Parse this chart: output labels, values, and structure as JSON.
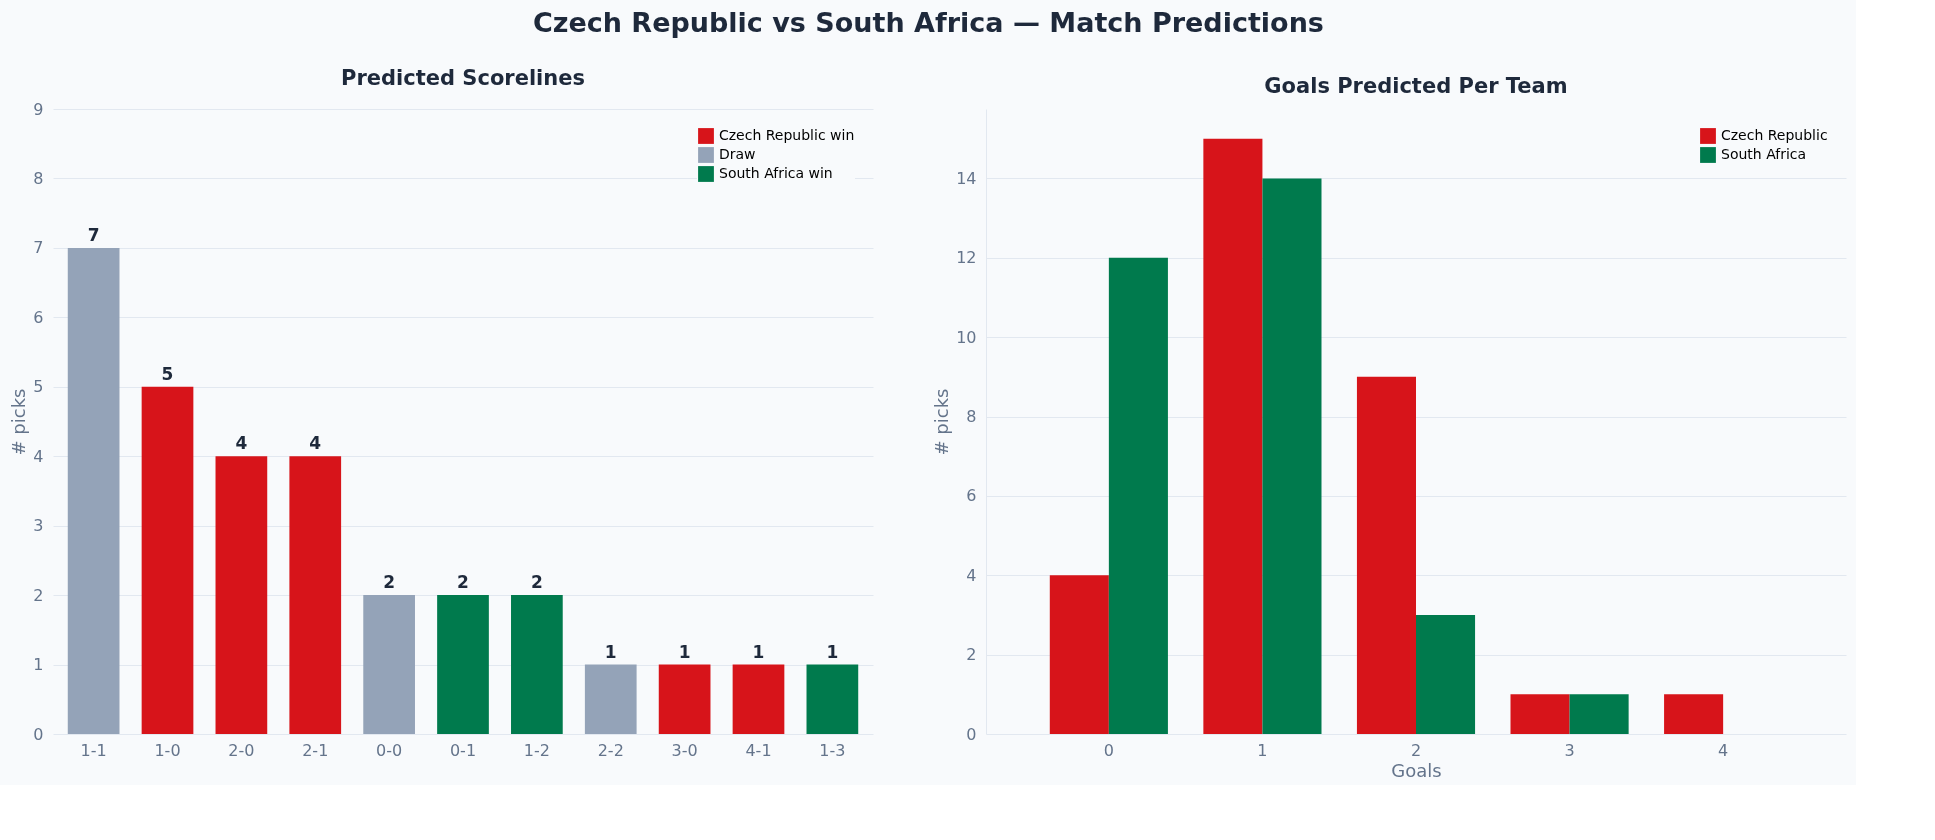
{
  "chart_data": [
    {
      "type": "bar",
      "annotations": [
        "Czech Republic vs South Africa  —  Match Predictions"
      ],
      "title": "Predicted Scorelines",
      "ylabel": "# picks",
      "categories": [
        "1-1",
        "1-0",
        "2-0",
        "2-1",
        "0-0",
        "0-1",
        "1-2",
        "2-2",
        "3-0",
        "4-1",
        "1-3"
      ],
      "stacked": true,
      "series": [
        {
          "name": "Czech Republic win",
          "color": "#d7141a",
          "values": [
            null,
            5,
            4,
            4,
            null,
            null,
            null,
            null,
            1,
            1,
            null
          ]
        },
        {
          "name": "Draw",
          "color": "#94a3b8",
          "values": [
            7,
            null,
            null,
            null,
            2,
            null,
            null,
            1,
            null,
            null,
            null
          ]
        },
        {
          "name": "South Africa win",
          "color": "#007a4d",
          "values": [
            null,
            null,
            null,
            null,
            null,
            2,
            2,
            null,
            null,
            null,
            1
          ]
        }
      ],
      "ylim": [
        0,
        9
      ],
      "yticks": [
        0,
        1,
        2,
        3,
        4,
        5,
        6,
        7,
        8,
        9
      ],
      "grid": "y",
      "legend": "top right",
      "data_labels": true
    },
    {
      "type": "bar",
      "title": "Goals Predicted Per Team",
      "xlabel": "Goals",
      "ylabel": "# picks",
      "categories": [
        "0",
        "1",
        "2",
        "3",
        "4"
      ],
      "series": [
        {
          "name": "Czech Republic",
          "color": "#d7141a",
          "values": [
            4,
            15,
            9,
            1,
            1
          ]
        },
        {
          "name": "South Africa",
          "color": "#007a4d",
          "values": [
            12,
            14,
            3,
            1,
            0
          ]
        }
      ],
      "ylim": [
        0,
        15.75
      ],
      "yticks": [
        0,
        2,
        4,
        6,
        8,
        10,
        12,
        14
      ],
      "grid": "y",
      "legend": "top right"
    }
  ]
}
